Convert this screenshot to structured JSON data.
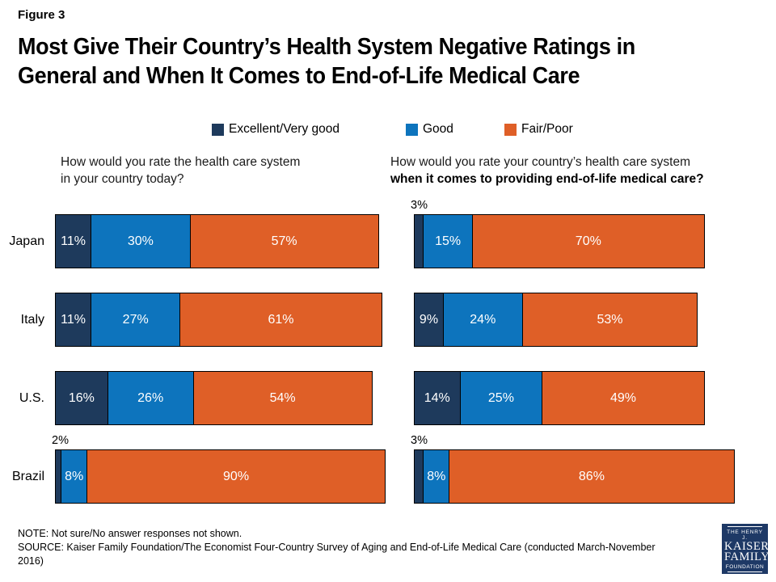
{
  "figure_label": "Figure 3",
  "title_line1": "Most Give Their Country’s Health System Negative Ratings in",
  "title_line2": "General and When It Comes to End-of-Life Medical Care",
  "colors": {
    "excellent_very_good": "#1E3A5C",
    "good": "#0D74BD",
    "fair_poor": "#DF5F27",
    "logo_bg": "#1E3966"
  },
  "legend": {
    "items": [
      {
        "label": "Excellent/Very good",
        "color": "#1E3A5C"
      },
      {
        "label": "Good",
        "color": "#0D74BD"
      },
      {
        "label": "Fair/Poor",
        "color": "#DF5F27"
      }
    ]
  },
  "questions": {
    "left_line1": "How would you rate the health care system",
    "left_line2": "in your country today?",
    "right_line1": "How would you rate your country’s health care system",
    "right_line2_bold": "when it comes to providing end-of-life medical care?"
  },
  "footer": {
    "note": "NOTE: Not sure/No answer responses not shown.",
    "source": "SOURCE: Kaiser Family Foundation/The Economist Four-Country Survey of Aging and End-of-Life Medical Care (conducted March-November 2016)"
  },
  "logo": {
    "line1": "THE HENRY J.",
    "line2": "KAISER",
    "line3": "FAMILY",
    "line4": "FOUNDATION"
  },
  "chart_data": [
    {
      "type": "bar",
      "orientation": "horizontal_stacked",
      "title": "How would you rate the health care system in your country today?",
      "categories": [
        "Japan",
        "Italy",
        "U.S.",
        "Brazil"
      ],
      "series": [
        {
          "name": "Excellent/Very good",
          "color": "#1E3A5C",
          "values": [
            11,
            11,
            16,
            2
          ]
        },
        {
          "name": "Good",
          "color": "#0D74BD",
          "values": [
            30,
            27,
            26,
            8
          ]
        },
        {
          "name": "Fair/Poor",
          "color": "#DF5F27",
          "values": [
            57,
            61,
            54,
            90
          ]
        }
      ],
      "xlim": [
        0,
        100
      ],
      "value_suffix": "%",
      "grid": false,
      "legend_position": "top",
      "small_value_label_position": "above_bar_when_3_or_less"
    },
    {
      "type": "bar",
      "orientation": "horizontal_stacked",
      "title": "How would you rate your country’s health care system when it comes to providing end-of-life medical care?",
      "categories": [
        "Japan",
        "Italy",
        "U.S.",
        "Brazil"
      ],
      "series": [
        {
          "name": "Excellent/Very good",
          "color": "#1E3A5C",
          "values": [
            3,
            9,
            14,
            3
          ]
        },
        {
          "name": "Good",
          "color": "#0D74BD",
          "values": [
            15,
            24,
            25,
            8
          ]
        },
        {
          "name": "Fair/Poor",
          "color": "#DF5F27",
          "values": [
            70,
            53,
            49,
            86
          ]
        }
      ],
      "xlim": [
        0,
        100
      ],
      "value_suffix": "%",
      "grid": false,
      "legend_position": "top",
      "small_value_label_position": "above_bar_when_3_or_less"
    }
  ]
}
